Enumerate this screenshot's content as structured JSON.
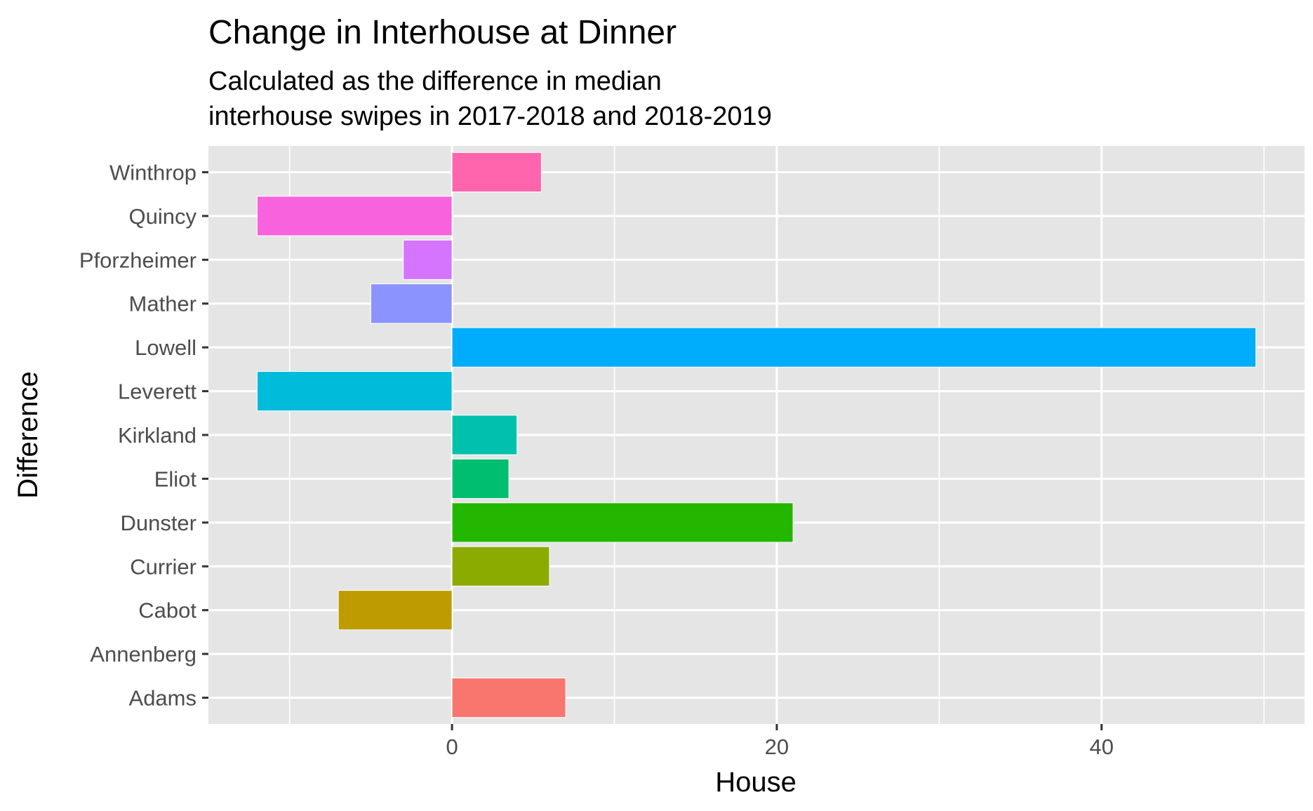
{
  "chart_data": {
    "type": "bar",
    "orientation": "horizontal",
    "title": "Change in Interhouse at Dinner",
    "subtitle": [
      "Calculated as the difference in median",
      "interhouse swipes in 2017-2018 and 2018-2019"
    ],
    "xlabel": "House",
    "ylabel": "Difference",
    "categories": [
      "Adams",
      "Annenberg",
      "Cabot",
      "Currier",
      "Dunster",
      "Eliot",
      "Kirkland",
      "Leverett",
      "Lowell",
      "Mather",
      "Pforzheimer",
      "Quincy",
      "Winthrop"
    ],
    "values": [
      7,
      0,
      -7,
      6,
      21,
      3.5,
      4,
      -12,
      49.5,
      -5,
      -3,
      -12,
      5.5
    ],
    "colors": [
      "#F8766D",
      "#E18A00",
      "#BE9C00",
      "#8CAB00",
      "#24B700",
      "#00BE70",
      "#00C1AB",
      "#00BBDA",
      "#00ACFC",
      "#8B93FF",
      "#D575FE",
      "#F962DD",
      "#FF65AC"
    ],
    "xlim": [
      -15,
      52.5
    ],
    "x_ticks": [
      0,
      20,
      40
    ],
    "x_gridlines": [
      -10,
      0,
      10,
      20,
      30,
      40,
      50
    ],
    "grid": true,
    "background": "#E5E5E5",
    "legend": "none"
  }
}
